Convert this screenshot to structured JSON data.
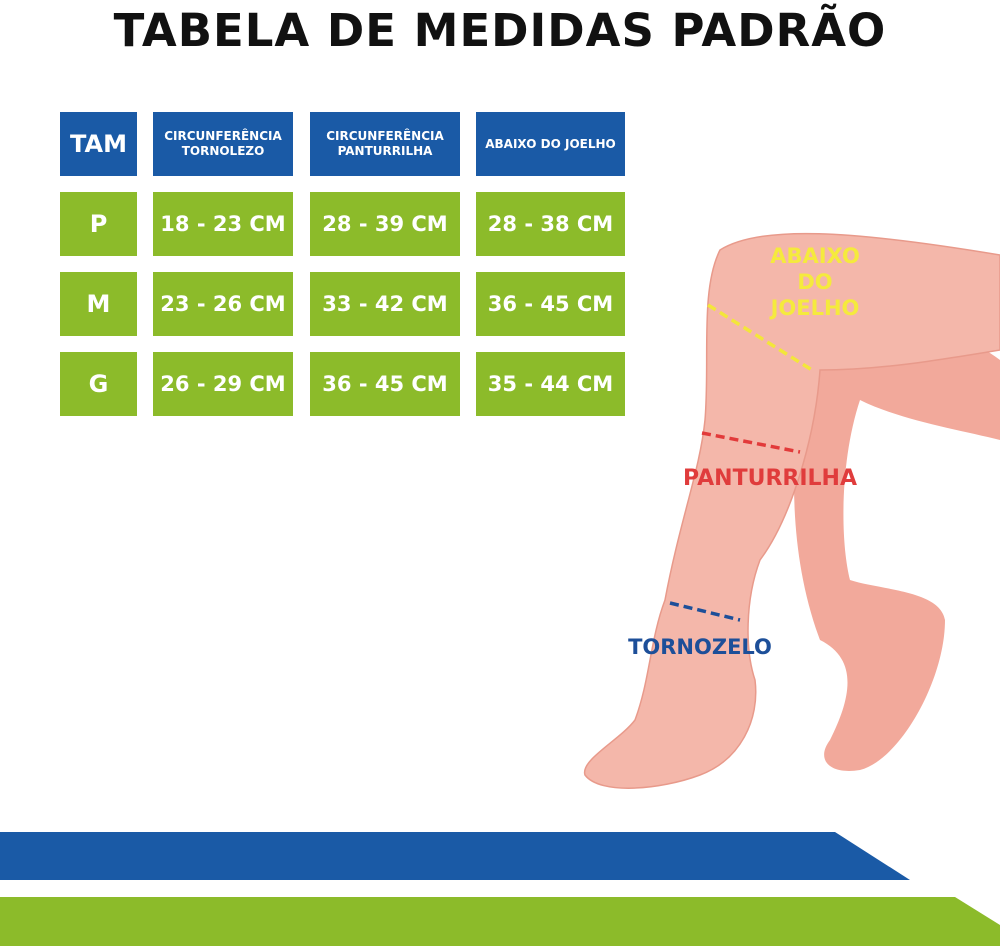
{
  "title": "TABELA DE MEDIDAS PADRÃO",
  "table": {
    "header": [
      "TAM",
      "CIRCUNFERÊNCIA TORNOLEZO",
      "CIRCUNFERÊNCIA PANTURRILHA",
      "ABAIXO DO JOELHO"
    ],
    "rows": [
      [
        "P",
        "18 - 23 CM",
        "28 - 39 CM",
        "28 - 38 CM"
      ],
      [
        "M",
        "23 - 26 CM",
        "33 - 42 CM",
        "36 - 45 CM"
      ],
      [
        "G",
        "26 - 29 CM",
        "36 - 45 CM",
        "35 - 44 CM"
      ]
    ]
  },
  "illustration": {
    "knee_label": "ABAIXO DO JOELHO",
    "calf_label": "PANTURRILHA",
    "ankle_label": "TORNOZELO"
  }
}
